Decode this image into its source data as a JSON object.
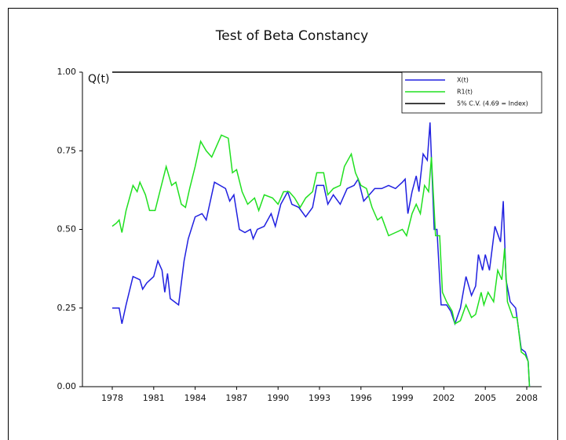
{
  "chart_data": {
    "type": "line",
    "title": "Test of Beta Constancy",
    "y_label": "Q(t)",
    "xlim": [
      1975.84,
      2009.08
    ],
    "ylim": [
      0,
      1
    ],
    "xticks": [
      1978,
      1981,
      1984,
      1987,
      1990,
      1993,
      1996,
      1999,
      2002,
      2005,
      2008
    ],
    "yticks": [
      {
        "value": 0,
        "label": "0.00"
      },
      0.25,
      {
        "value": 0.5,
        "label": "0.50"
      },
      0.75,
      {
        "value": 1,
        "label": "1.00"
      }
    ],
    "legend": "upper right",
    "series": [
      {
        "name": "X(t)",
        "color": "#2020e0",
        "x": [
          1978,
          1978.5,
          1978.7,
          1979,
          1979.5,
          1980,
          1980.2,
          1980.5,
          1981,
          1981.3,
          1981.6,
          1981.8,
          1982,
          1982.2,
          1982.8,
          1983.2,
          1983.5,
          1984,
          1984.5,
          1984.8,
          1985,
          1985.4,
          1985.8,
          1986.2,
          1986.5,
          1986.8,
          1987.2,
          1987.6,
          1988,
          1988.2,
          1988.5,
          1989,
          1989.5,
          1989.8,
          1990.2,
          1990.7,
          1991,
          1991.5,
          1992,
          1992.5,
          1992.8,
          1993.3,
          1993.6,
          1994,
          1994.5,
          1995,
          1995.5,
          1995.8,
          1996.2,
          1996.6,
          1997,
          1997.5,
          1998,
          1998.5,
          1999,
          1999.2,
          1999.4,
          1999.7,
          2000,
          2000.2,
          2000.5,
          2000.8,
          2001,
          2001.3,
          2001.5,
          2001.8,
          2002.2,
          2002.5,
          2002.8,
          2003.2,
          2003.6,
          2004,
          2004.3,
          2004.5,
          2004.8,
          2005,
          2005.3,
          2005.7,
          2006.1,
          2006.3,
          2006.5,
          2006.8,
          2007.2,
          2007.6,
          2007.9,
          2008.1,
          2008.2
        ],
        "values": [
          0.25,
          0.25,
          0.2,
          0.26,
          0.35,
          0.34,
          0.31,
          0.33,
          0.35,
          0.4,
          0.37,
          0.3,
          0.36,
          0.28,
          0.26,
          0.4,
          0.47,
          0.54,
          0.55,
          0.53,
          0.57,
          0.65,
          0.64,
          0.63,
          0.59,
          0.61,
          0.5,
          0.49,
          0.5,
          0.47,
          0.5,
          0.51,
          0.55,
          0.51,
          0.58,
          0.62,
          0.58,
          0.57,
          0.54,
          0.57,
          0.64,
          0.64,
          0.58,
          0.61,
          0.58,
          0.63,
          0.64,
          0.66,
          0.59,
          0.61,
          0.63,
          0.63,
          0.64,
          0.63,
          0.65,
          0.66,
          0.55,
          0.62,
          0.67,
          0.62,
          0.74,
          0.72,
          0.84,
          0.5,
          0.5,
          0.26,
          0.26,
          0.24,
          0.2,
          0.25,
          0.35,
          0.29,
          0.32,
          0.42,
          0.37,
          0.42,
          0.37,
          0.51,
          0.46,
          0.59,
          0.34,
          0.27,
          0.25,
          0.12,
          0.11,
          0.08,
          0
        ]
      },
      {
        "name": "R1(t)",
        "color": "#20e020",
        "x": [
          1978,
          1978.3,
          1978.5,
          1978.7,
          1979,
          1979.5,
          1979.8,
          1980,
          1980.4,
          1980.7,
          1981.1,
          1981.5,
          1981.9,
          1982.3,
          1982.6,
          1983,
          1983.3,
          1983.6,
          1984,
          1984.4,
          1984.8,
          1985.2,
          1985.5,
          1985.9,
          1986.4,
          1986.7,
          1987,
          1987.4,
          1987.8,
          1988.3,
          1988.6,
          1989,
          1989.6,
          1990,
          1990.4,
          1990.8,
          1991.2,
          1991.6,
          1992,
          1992.5,
          1992.8,
          1993.3,
          1993.6,
          1994,
          1994.5,
          1994.8,
          1995.3,
          1995.6,
          1996,
          1996.4,
          1996.8,
          1997.2,
          1997.5,
          1998,
          1998.5,
          1999,
          1999.3,
          1999.7,
          2000,
          2000.3,
          2000.6,
          2000.9,
          2001.1,
          2001.4,
          2001.7,
          2001.9,
          2002.2,
          2002.6,
          2002.8,
          2003.2,
          2003.6,
          2004,
          2004.3,
          2004.7,
          2004.9,
          2005.2,
          2005.6,
          2005.9,
          2006.2,
          2006.4,
          2006.6,
          2007,
          2007.3,
          2007.6,
          2007.9,
          2008.1,
          2008.2
        ],
        "values": [
          0.51,
          0.52,
          0.53,
          0.49,
          0.56,
          0.64,
          0.62,
          0.65,
          0.61,
          0.56,
          0.56,
          0.63,
          0.7,
          0.64,
          0.65,
          0.58,
          0.57,
          0.63,
          0.7,
          0.78,
          0.75,
          0.73,
          0.76,
          0.8,
          0.79,
          0.68,
          0.69,
          0.62,
          0.58,
          0.6,
          0.56,
          0.61,
          0.6,
          0.58,
          0.62,
          0.62,
          0.6,
          0.57,
          0.6,
          0.62,
          0.68,
          0.68,
          0.61,
          0.63,
          0.64,
          0.7,
          0.74,
          0.68,
          0.64,
          0.63,
          0.57,
          0.53,
          0.54,
          0.48,
          0.49,
          0.5,
          0.48,
          0.55,
          0.58,
          0.55,
          0.64,
          0.62,
          0.73,
          0.48,
          0.48,
          0.3,
          0.27,
          0.24,
          0.2,
          0.21,
          0.26,
          0.22,
          0.23,
          0.3,
          0.26,
          0.3,
          0.27,
          0.37,
          0.34,
          0.44,
          0.27,
          0.22,
          0.22,
          0.11,
          0.1,
          0.08,
          0
        ]
      },
      {
        "name": "5% C.V. (4.69 = Index)",
        "color": "#000000",
        "x": [
          1978,
          2009.08
        ],
        "values": [
          1,
          1
        ]
      }
    ]
  }
}
